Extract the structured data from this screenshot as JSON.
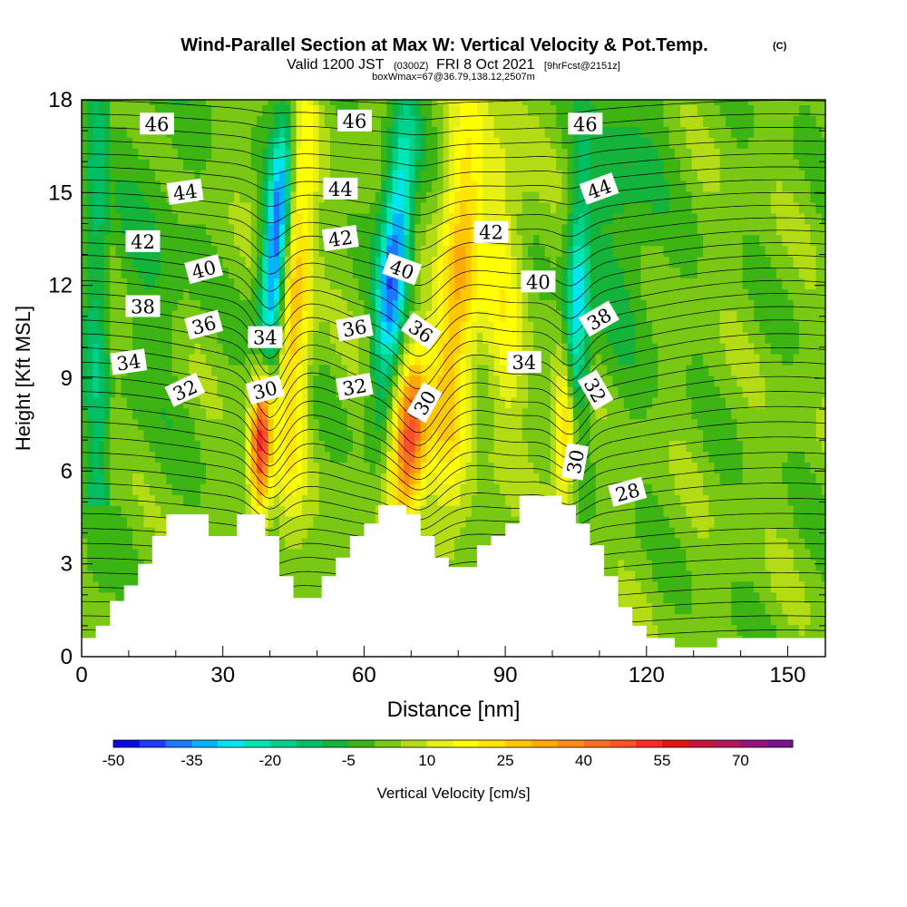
{
  "chart_data": {
    "type": "heatmap",
    "title": "Wind-Parallel Section at Max W: Vertical Velocity & Pot.Temp.",
    "title_mark": "(C)",
    "subtitle_parts": [
      "Valid 1200 JST",
      "(0300Z)",
      "FRI 8 Oct 2021",
      "[9hrFcst@2151z]"
    ],
    "subtitle2": "boxWmax=67@36.79,138.12,2507m",
    "xlabel": "Distance [nm]",
    "ylabel": "Height [Kft MSL]",
    "xlim": [
      0,
      158
    ],
    "ylim": [
      0,
      18
    ],
    "x_ticks": [
      0,
      30,
      60,
      90,
      120,
      150
    ],
    "y_ticks": [
      0,
      3,
      6,
      9,
      12,
      15,
      18
    ],
    "colorbar": {
      "label": "Vertical Velocity [cm/s]",
      "min": -50,
      "max": 80,
      "step": 5,
      "tick_values": [
        -50,
        -35,
        -20,
        -5,
        10,
        25,
        40,
        55,
        70
      ],
      "colors": [
        "#0a0ae6",
        "#1e3cff",
        "#1e78ff",
        "#00b4ff",
        "#00e6f0",
        "#00e6b4",
        "#00d28c",
        "#00be64",
        "#14b43c",
        "#3cb414",
        "#78c814",
        "#b4dc14",
        "#e6f014",
        "#ffff00",
        "#ffe600",
        "#ffc800",
        "#ffaa00",
        "#ff8c14",
        "#ff6e1e",
        "#ff5028",
        "#ff2828",
        "#e61414",
        "#c8143c",
        "#b4145a",
        "#961478",
        "#78148c"
      ]
    },
    "updrafts": [
      {
        "x": 38,
        "y": 7.2,
        "peak_cm_s": 67
      },
      {
        "x": 70,
        "y": 7.0,
        "peak_cm_s": 50
      },
      {
        "x": 103,
        "y": 7.0,
        "peak_cm_s": 40
      }
    ],
    "theta_contour_labels": [
      {
        "value": "46",
        "x": 16,
        "y": 17.2,
        "angle": 0
      },
      {
        "value": "46",
        "x": 58,
        "y": 17.3,
        "angle": 0
      },
      {
        "value": "46",
        "x": 107,
        "y": 17.2,
        "angle": 0
      },
      {
        "value": "44",
        "x": 22,
        "y": 15.0,
        "angle": -8
      },
      {
        "value": "44",
        "x": 55,
        "y": 15.1,
        "angle": 0
      },
      {
        "value": "44",
        "x": 110,
        "y": 15.1,
        "angle": -20
      },
      {
        "value": "42",
        "x": 13,
        "y": 13.4,
        "angle": 0
      },
      {
        "value": "42",
        "x": 55,
        "y": 13.5,
        "angle": -8
      },
      {
        "value": "42",
        "x": 87,
        "y": 13.7,
        "angle": 0
      },
      {
        "value": "40",
        "x": 26,
        "y": 12.5,
        "angle": -15
      },
      {
        "value": "40",
        "x": 68,
        "y": 12.5,
        "angle": 20
      },
      {
        "value": "40",
        "x": 97,
        "y": 12.1,
        "angle": 0
      },
      {
        "value": "38",
        "x": 13,
        "y": 11.3,
        "angle": 0
      },
      {
        "value": "38",
        "x": 110,
        "y": 10.9,
        "angle": -30
      },
      {
        "value": "36",
        "x": 26,
        "y": 10.7,
        "angle": -15
      },
      {
        "value": "36",
        "x": 58,
        "y": 10.6,
        "angle": -10
      },
      {
        "value": "36",
        "x": 72,
        "y": 10.5,
        "angle": 35
      },
      {
        "value": "34",
        "x": 10,
        "y": 9.5,
        "angle": -8
      },
      {
        "value": "34",
        "x": 39,
        "y": 10.3,
        "angle": 0
      },
      {
        "value": "34",
        "x": 94,
        "y": 9.5,
        "angle": 0
      },
      {
        "value": "32",
        "x": 22,
        "y": 8.6,
        "angle": -25
      },
      {
        "value": "32",
        "x": 58,
        "y": 8.7,
        "angle": -10
      },
      {
        "value": "32",
        "x": 109,
        "y": 8.6,
        "angle": 60
      },
      {
        "value": "30",
        "x": 39,
        "y": 8.6,
        "angle": -15
      },
      {
        "value": "30",
        "x": 73,
        "y": 8.2,
        "angle": -60
      },
      {
        "value": "30",
        "x": 105,
        "y": 6.3,
        "angle": -80
      },
      {
        "value": "28",
        "x": 116,
        "y": 5.3,
        "angle": -15
      }
    ],
    "terrain_nm_kft": [
      [
        0,
        0.6
      ],
      [
        3,
        0.6
      ],
      [
        3,
        1.0
      ],
      [
        6,
        1.0
      ],
      [
        6,
        1.8
      ],
      [
        9,
        1.8
      ],
      [
        9,
        2.3
      ],
      [
        12,
        2.3
      ],
      [
        12,
        3.0
      ],
      [
        15,
        3.0
      ],
      [
        15,
        3.9
      ],
      [
        18,
        3.9
      ],
      [
        18,
        4.6
      ],
      [
        27,
        4.6
      ],
      [
        27,
        3.9
      ],
      [
        33,
        3.9
      ],
      [
        33,
        4.6
      ],
      [
        39,
        4.6
      ],
      [
        39,
        3.9
      ],
      [
        42,
        3.9
      ],
      [
        42,
        2.6
      ],
      [
        45,
        2.6
      ],
      [
        45,
        1.9
      ],
      [
        51,
        1.9
      ],
      [
        51,
        2.6
      ],
      [
        54,
        2.6
      ],
      [
        54,
        3.2
      ],
      [
        57,
        3.2
      ],
      [
        57,
        3.9
      ],
      [
        60,
        3.9
      ],
      [
        60,
        4.3
      ],
      [
        63,
        4.3
      ],
      [
        63,
        4.9
      ],
      [
        69,
        4.9
      ],
      [
        69,
        4.6
      ],
      [
        72,
        4.6
      ],
      [
        72,
        3.9
      ],
      [
        75,
        3.9
      ],
      [
        75,
        3.2
      ],
      [
        78,
        3.2
      ],
      [
        78,
        2.9
      ],
      [
        84,
        2.9
      ],
      [
        84,
        3.6
      ],
      [
        87,
        3.6
      ],
      [
        87,
        3.9
      ],
      [
        90,
        3.9
      ],
      [
        90,
        4.3
      ],
      [
        93,
        4.3
      ],
      [
        93,
        5.2
      ],
      [
        102,
        5.2
      ],
      [
        102,
        4.9
      ],
      [
        105,
        4.9
      ],
      [
        105,
        4.3
      ],
      [
        108,
        4.3
      ],
      [
        108,
        3.6
      ],
      [
        111,
        3.6
      ],
      [
        111,
        2.6
      ],
      [
        114,
        2.6
      ],
      [
        114,
        1.6
      ],
      [
        117,
        1.6
      ],
      [
        117,
        1.0
      ],
      [
        120,
        1.0
      ],
      [
        120,
        0.6
      ],
      [
        126,
        0.6
      ],
      [
        126,
        0.3
      ],
      [
        135,
        0.3
      ],
      [
        135,
        0.6
      ],
      [
        158,
        0.6
      ]
    ]
  }
}
